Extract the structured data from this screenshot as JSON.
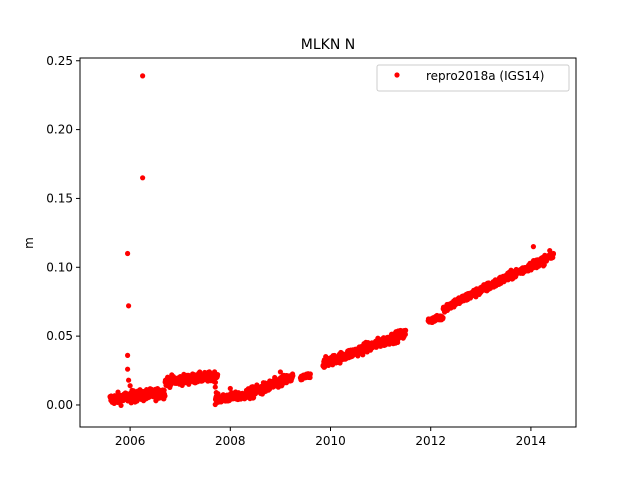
{
  "chart_data": {
    "type": "scatter",
    "title": "MLKN N",
    "xlabel": "",
    "ylabel": "m",
    "xlim": [
      2005.0,
      2014.9
    ],
    "ylim": [
      -0.016,
      0.252
    ],
    "x_ticks": [
      2006,
      2008,
      2010,
      2012,
      2014
    ],
    "x_tick_labels": [
      "2006",
      "2008",
      "2010",
      "2012",
      "2014"
    ],
    "y_ticks": [
      0.0,
      0.05,
      0.1,
      0.15,
      0.2,
      0.25
    ],
    "y_tick_labels": [
      "0.00",
      "0.05",
      "0.10",
      "0.15",
      "0.20",
      "0.25"
    ],
    "grid": false,
    "legend_position": "top-right",
    "series": [
      {
        "name": "repro2018a (IGS14)",
        "color": "#ff0000",
        "marker": "circle",
        "segments": [
          {
            "x_start": 2005.6,
            "x_end": 2006.7,
            "y_start": 0.004,
            "y_end": 0.009,
            "noise": 0.004
          },
          {
            "x_start": 2006.7,
            "x_end": 2007.75,
            "y_start": 0.017,
            "y_end": 0.021,
            "noise": 0.0035
          },
          {
            "x_start": 2007.7,
            "x_end": 2008.3,
            "y_start": 0.004,
            "y_end": 0.007,
            "noise": 0.003
          },
          {
            "x_start": 2008.3,
            "x_end": 2009.25,
            "y_start": 0.007,
            "y_end": 0.02,
            "noise": 0.004
          },
          {
            "x_start": 2009.4,
            "x_end": 2009.6,
            "y_start": 0.019,
            "y_end": 0.022,
            "noise": 0.002
          },
          {
            "x_start": 2009.85,
            "x_end": 2011.5,
            "y_start": 0.03,
            "y_end": 0.052,
            "noise": 0.0035
          },
          {
            "x_start": 2011.95,
            "x_end": 2012.25,
            "y_start": 0.061,
            "y_end": 0.064,
            "noise": 0.002
          },
          {
            "x_start": 2012.25,
            "x_end": 2014.45,
            "y_start": 0.07,
            "y_end": 0.109,
            "noise": 0.003
          }
        ],
        "points": [
          {
            "x": 2006.25,
            "y": 0.239
          },
          {
            "x": 2006.25,
            "y": 0.165
          },
          {
            "x": 2005.95,
            "y": 0.11
          },
          {
            "x": 2005.97,
            "y": 0.072
          },
          {
            "x": 2005.95,
            "y": 0.036
          },
          {
            "x": 2005.95,
            "y": 0.026
          },
          {
            "x": 2005.97,
            "y": 0.018
          },
          {
            "x": 2006.0,
            "y": 0.014
          },
          {
            "x": 2007.7,
            "y": 0.013
          },
          {
            "x": 2007.72,
            "y": 0.009
          },
          {
            "x": 2008.0,
            "y": 0.012
          },
          {
            "x": 2009.0,
            "y": 0.024
          },
          {
            "x": 2014.05,
            "y": 0.115
          },
          {
            "x": 2014.25,
            "y": 0.101
          },
          {
            "x": 2014.45,
            "y": 0.11
          }
        ]
      }
    ]
  }
}
